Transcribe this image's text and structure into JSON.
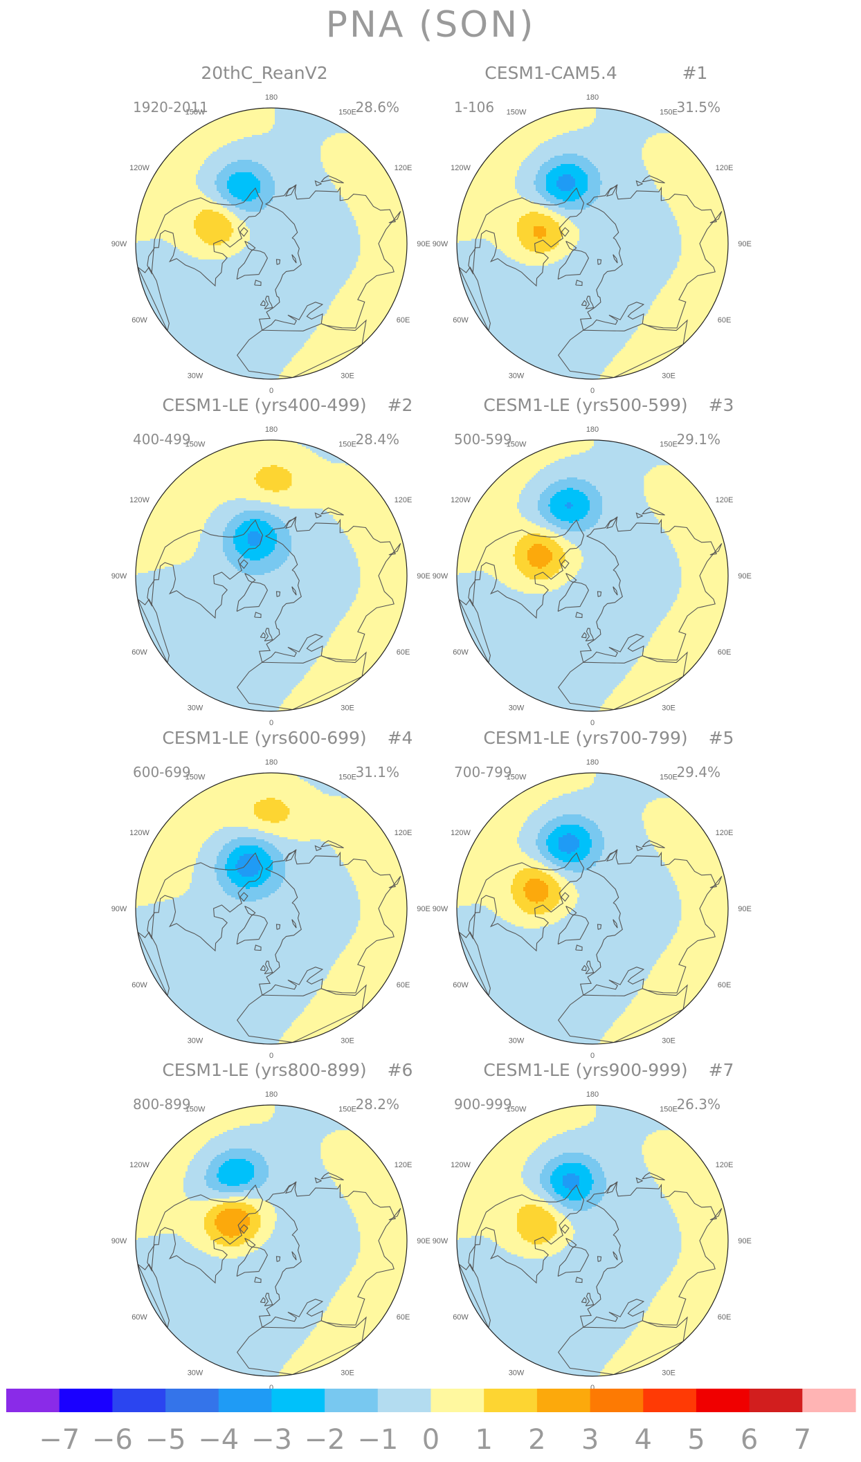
{
  "title": "PNA (SON)",
  "panels": [
    {
      "title": "20thC_ReanV2",
      "subtitle": "",
      "period": "1920-2011",
      "variance": "28.6%",
      "lows": [
        {
          "lat": 52,
          "lon": -150,
          "amp": -3.2
        }
      ],
      "highs": [
        {
          "lat": 55,
          "lon": -112,
          "amp": 2.3
        }
      ]
    },
    {
      "title": "CESM1-CAM5.4",
      "subtitle": "#1",
      "period": "1-106",
      "variance": "31.5%",
      "lows": [
        {
          "lat": 50,
          "lon": -155,
          "amp": -3.5
        }
      ],
      "highs": [
        {
          "lat": 58,
          "lon": -105,
          "amp": 2.4
        }
      ]
    },
    {
      "title": "CESM1-LE (yrs400-499)",
      "subtitle": "#2",
      "period": "400-499",
      "variance": "28.4%",
      "lows": [
        {
          "lat": 65,
          "lon": -155,
          "amp": -3.2
        }
      ],
      "highs": [
        {
          "lat": 30,
          "lon": 178,
          "amp": 1.4
        }
      ]
    },
    {
      "title": "CESM1-LE (yrs500-599)",
      "subtitle": "#3",
      "period": "500-599",
      "variance": "29.1%",
      "lows": [
        {
          "lat": 45,
          "lon": -160,
          "amp": -3.2
        }
      ],
      "highs": [
        {
          "lat": 56,
          "lon": -112,
          "amp": 2.6
        }
      ]
    },
    {
      "title": "CESM1-LE (yrs600-699)",
      "subtitle": "#4",
      "period": "600-699",
      "variance": "31.1%",
      "lows": [
        {
          "lat": 60,
          "lon": -152,
          "amp": -3.6
        }
      ],
      "highs": [
        {
          "lat": 30,
          "lon": 180,
          "amp": 1.4
        }
      ]
    },
    {
      "title": "CESM1-LE (yrs700-799)",
      "subtitle": "#5",
      "period": "700-799",
      "variance": "29.4%",
      "lows": [
        {
          "lat": 48,
          "lon": -158,
          "amp": -3.6
        }
      ],
      "highs": [
        {
          "lat": 55,
          "lon": -110,
          "amp": 2.7
        }
      ]
    },
    {
      "title": "CESM1-LE (yrs800-899)",
      "subtitle": "#6",
      "period": "800-899",
      "variance": "28.2%",
      "lows": [
        {
          "lat": 45,
          "lon": -150,
          "amp": -3.3
        }
      ],
      "highs": [
        {
          "lat": 63,
          "lon": -120,
          "amp": 3.4
        }
      ]
    },
    {
      "title": "CESM1-LE (yrs900-999)",
      "subtitle": "#7",
      "period": "900-999",
      "variance": "26.3%",
      "lows": [
        {
          "lat": 52,
          "lon": -158,
          "amp": -3.5
        }
      ],
      "highs": [
        {
          "lat": 56,
          "lon": -110,
          "amp": 2.2
        }
      ]
    }
  ],
  "longitude_labels": [
    {
      "text": "180",
      "lon": 180
    },
    {
      "text": "150E",
      "lon": 150
    },
    {
      "text": "120E",
      "lon": 120
    },
    {
      "text": "90E",
      "lon": 90
    },
    {
      "text": "60E",
      "lon": 60
    },
    {
      "text": "30E",
      "lon": 30
    },
    {
      "text": "0",
      "lon": 0
    },
    {
      "text": "30W",
      "lon": -30
    },
    {
      "text": "60W",
      "lon": -60
    },
    {
      "text": "90W",
      "lon": -90
    },
    {
      "text": "120W",
      "lon": -120
    },
    {
      "text": "150W",
      "lon": -150
    }
  ],
  "colorbar": {
    "levels": [
      "-7",
      "-6",
      "-5",
      "-4",
      "-3",
      "-2",
      "-1",
      "0",
      "1",
      "2",
      "3",
      "4",
      "5",
      "6",
      "7"
    ],
    "colors": [
      "#8a2be8",
      "#1a00ff",
      "#2b45f0",
      "#3474ea",
      "#1f9bf5",
      "#00c1fa",
      "#78c8f0",
      "#b3dcf0",
      "#fff89f",
      "#fdd532",
      "#fca90c",
      "#fd7a03",
      "#ff3a05",
      "#f00000",
      "#d21e1e",
      "#ffb4b4"
    ]
  }
}
